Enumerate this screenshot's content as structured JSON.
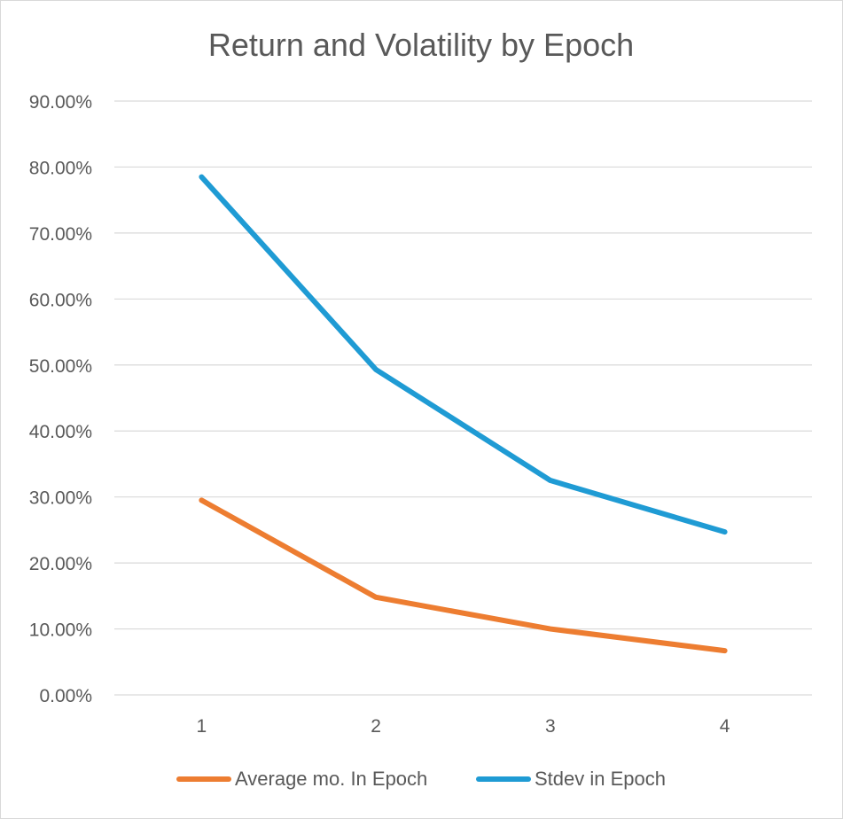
{
  "chart_data": {
    "type": "line",
    "title": "Return and Volatility by Epoch",
    "xlabel": "",
    "ylabel": "",
    "categories": [
      "1",
      "2",
      "3",
      "4"
    ],
    "ylim": [
      0,
      0.9
    ],
    "yticks": [
      0,
      0.1,
      0.2,
      0.3,
      0.4,
      0.5,
      0.6,
      0.7,
      0.8,
      0.9
    ],
    "ytick_labels": [
      "0.00%",
      "10.00%",
      "20.00%",
      "30.00%",
      "40.00%",
      "50.00%",
      "60.00%",
      "70.00%",
      "80.00%",
      "90.00%"
    ],
    "grid": true,
    "legend_position": "bottom",
    "series": [
      {
        "name": "Average mo. In Epoch",
        "color": "#ed7d31",
        "values": [
          0.295,
          0.148,
          0.1,
          0.067
        ]
      },
      {
        "name": "Stdev in Epoch",
        "color": "#1f9bd4",
        "values": [
          0.785,
          0.493,
          0.325,
          0.247
        ]
      }
    ]
  }
}
